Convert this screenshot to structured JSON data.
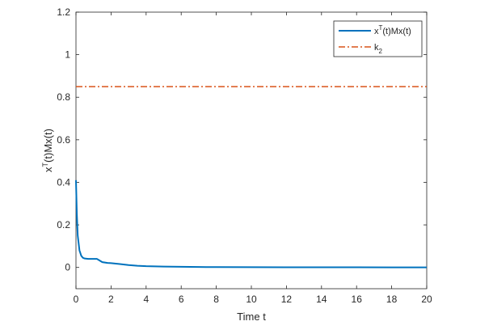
{
  "chart_data": {
    "type": "line",
    "title": "",
    "xlabel": "Time t",
    "ylabel": {
      "base": "x",
      "sup": "T",
      "rest": "(t)Mx(t)"
    },
    "xlim": [
      0,
      20
    ],
    "ylim": [
      -0.1,
      1.2
    ],
    "xticks": [
      0,
      2,
      4,
      6,
      8,
      10,
      12,
      14,
      16,
      18,
      20
    ],
    "yticks": [
      0,
      0.2,
      0.4,
      0.6,
      0.8,
      1,
      1.2
    ],
    "ytick_labels": [
      "0",
      "0.2",
      "0.4",
      "0.6",
      "0.8",
      "1",
      "1.2"
    ],
    "grid": false,
    "legend_position": "top-right",
    "series": [
      {
        "id": "xtmx",
        "legend": {
          "base": "x",
          "sup": "T",
          "rest": "(t)Mx(t)"
        },
        "color": "#0072BD",
        "style": "solid",
        "x": [
          0,
          0.05,
          0.1,
          0.2,
          0.3,
          0.4,
          0.5,
          0.7,
          0.9,
          1.0,
          1.2,
          1.3,
          1.5,
          1.8,
          2.0,
          2.5,
          3.0,
          3.5,
          4.0,
          5.0,
          6.0,
          7.0,
          8.0,
          10.0,
          12.0,
          14.0,
          16.0,
          18.0,
          20.0
        ],
        "y": [
          0.41,
          0.25,
          0.15,
          0.08,
          0.055,
          0.045,
          0.042,
          0.04,
          0.04,
          0.04,
          0.04,
          0.035,
          0.025,
          0.021,
          0.02,
          0.016,
          0.011,
          0.008,
          0.006,
          0.004,
          0.003,
          0.002,
          0.0015,
          0.001,
          0.0008,
          0.0006,
          0.0005,
          0.0004,
          0.0003
        ]
      },
      {
        "id": "k2",
        "legend": {
          "base": "k",
          "sub": "2"
        },
        "color": "#D95319",
        "style": "dashdot",
        "x": [
          0,
          20
        ],
        "y": [
          0.85,
          0.85
        ]
      }
    ]
  }
}
